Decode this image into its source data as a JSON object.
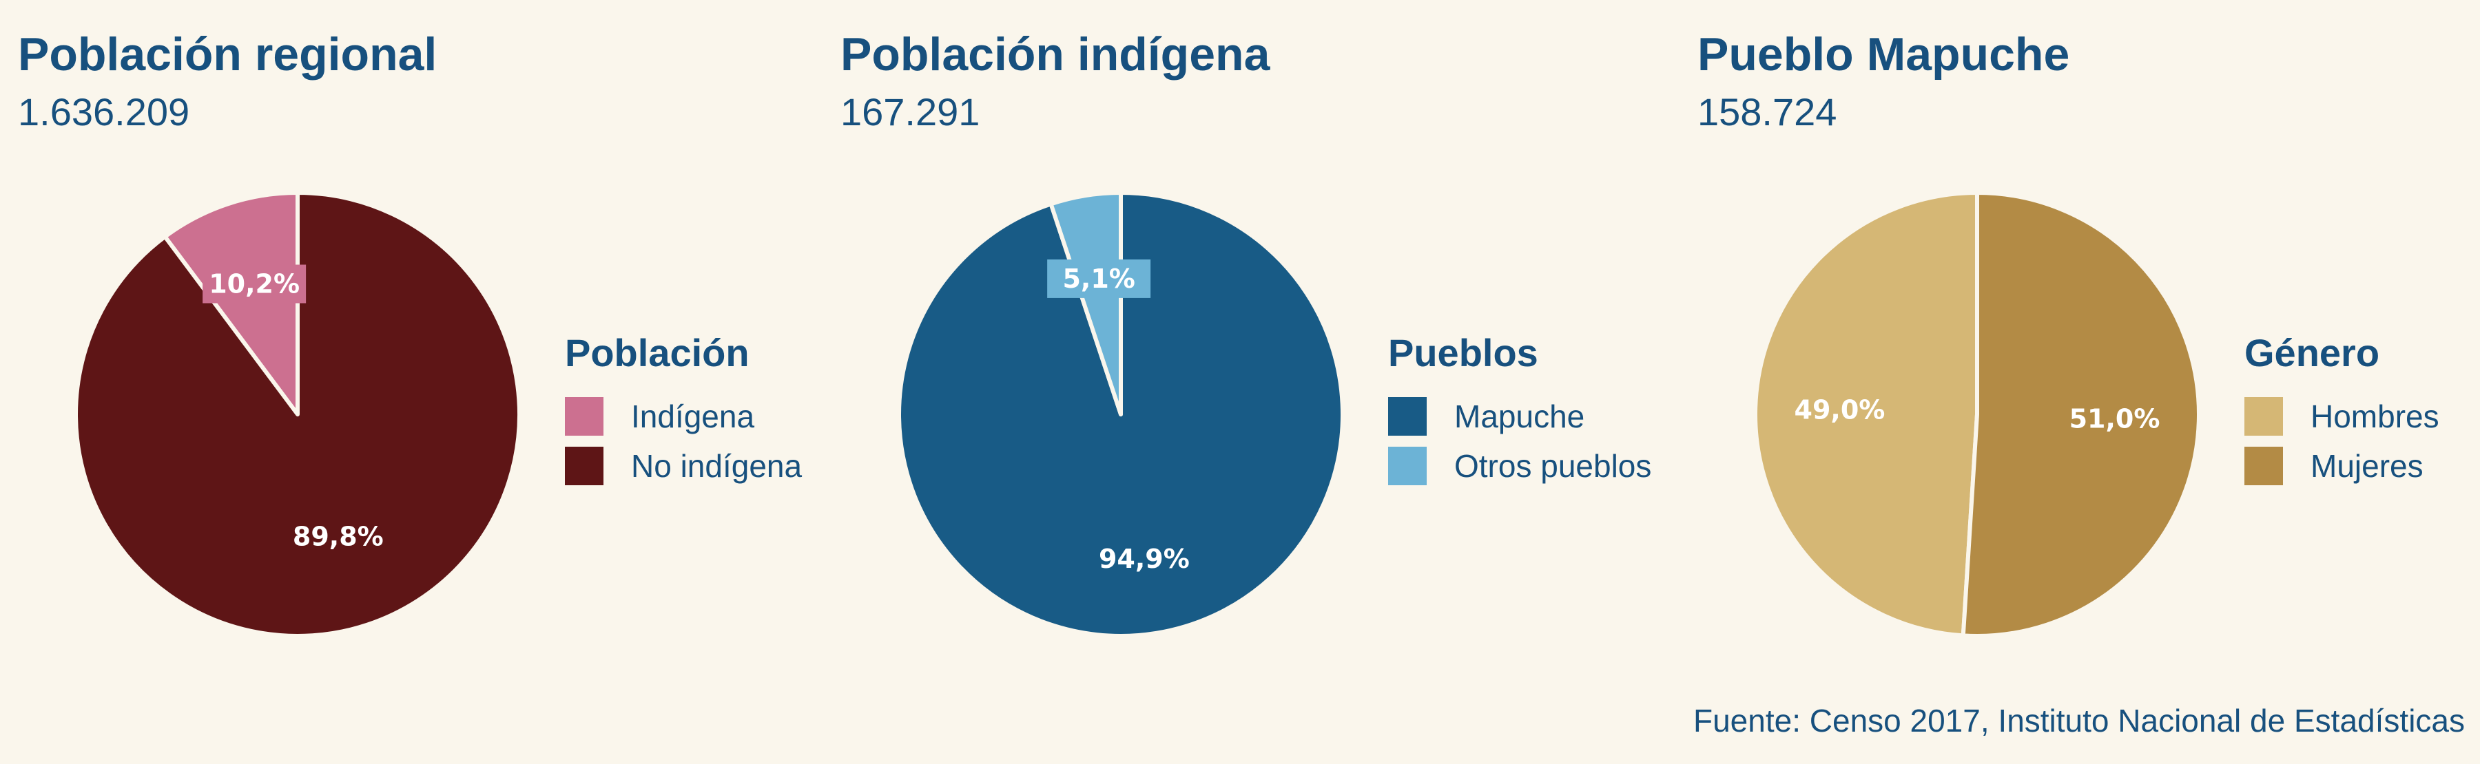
{
  "chart_data": [
    {
      "type": "pie",
      "title": "Población regional",
      "total": "1.636.209",
      "legend_title": "Población",
      "slices": [
        {
          "name": "Indígena",
          "value": 10.2,
          "label": "10,2%",
          "color": "#cc7090"
        },
        {
          "name": "No indígena",
          "value": 89.8,
          "label": "89,8%",
          "color": "#5e1516"
        }
      ]
    },
    {
      "type": "pie",
      "title": "Población indígena",
      "total": "167.291",
      "legend_title": "Pueblos",
      "slices": [
        {
          "name": "Mapuche",
          "value": 94.9,
          "label": "94,9%",
          "color": "#185b86"
        },
        {
          "name": "Otros pueblos",
          "value": 5.1,
          "label": "5,1%",
          "color": "#6cb3d6"
        }
      ]
    },
    {
      "type": "pie",
      "title": "Pueblo Mapuche",
      "total": "158.724",
      "legend_title": "Género",
      "slices": [
        {
          "name": "Hombres",
          "value": 49.0,
          "label": "49,0%",
          "color": "#d5b775"
        },
        {
          "name": "Mujeres",
          "value": 51.0,
          "label": "51,0%",
          "color": "#b38b45"
        }
      ]
    }
  ],
  "source": "Fuente: Censo 2017, Instituto Nacional de Estadísticas"
}
